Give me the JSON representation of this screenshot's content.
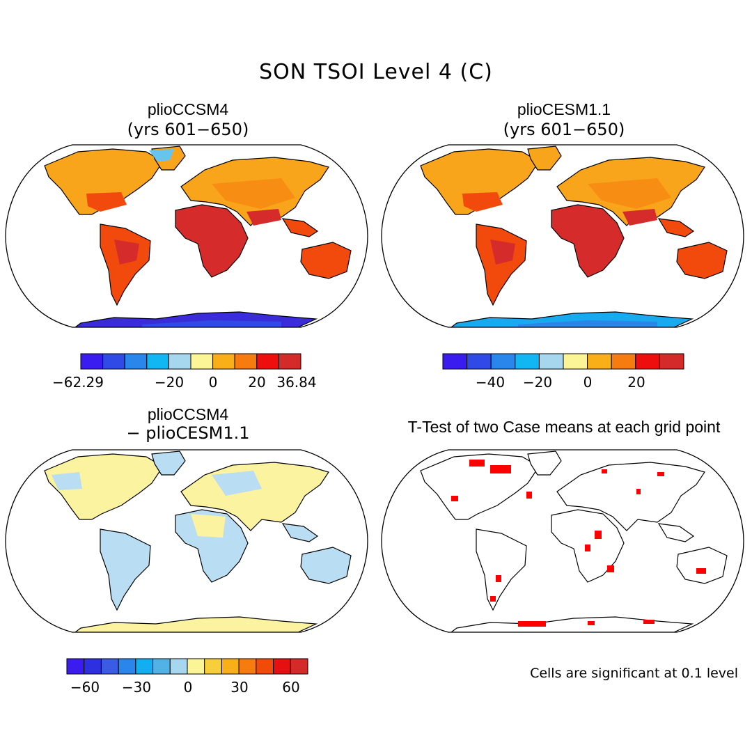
{
  "figure": {
    "title": "SON TSOI Level 4 (C)",
    "colors": {
      "scale": [
        "#3a1cf0",
        "#2f4ae6",
        "#2a86ea",
        "#11b7f2",
        "#a6d7ee",
        "#fbf598",
        "#f9b018",
        "#f77c10",
        "#ee0e0e",
        "#d42a2a"
      ],
      "diff_scale": [
        "#3a1cf0",
        "#2d2fe0",
        "#3c5be4",
        "#2a86ea",
        "#11aef0",
        "#52b2e6",
        "#a6d7ee",
        "#fbf598",
        "#f7cf3a",
        "#f9b018",
        "#f77c10",
        "#f24a08",
        "#e5100f",
        "#d42a2a"
      ],
      "land_warm": "#f24a0c",
      "land_hot": "#d52b2b",
      "land_mid": "#f8a51b",
      "land_cold": "#19a9ef",
      "land_coldest": "#3a2cd8",
      "diff_pos": "#fbf3a0",
      "diff_neg": "#b9ddf2",
      "signif": "#ff0000"
    }
  },
  "chart_data": [
    {
      "type": "map",
      "panel": "top-left",
      "title": "plioCCSM4",
      "subtitle": "(yrs 601−650)",
      "colorbar": {
        "tick_labels": [
          "−62.29",
          "−20",
          "0",
          "20",
          "36.84"
        ],
        "range": [
          -62.29,
          36.84
        ]
      }
    },
    {
      "type": "map",
      "panel": "top-right",
      "title": "plioCESM1.1",
      "subtitle": "(yrs 601−650)",
      "colorbar": {
        "tick_labels": [
          "−40",
          "−20",
          "0",
          "20"
        ],
        "range": [
          -62.29,
          36.84
        ]
      }
    },
    {
      "type": "map",
      "panel": "bottom-left",
      "title": "plioCCSM4",
      "subtitle": "− plioCESM1.1",
      "colorbar": {
        "tick_labels": [
          "−60",
          "−30",
          "0",
          "30",
          "60"
        ],
        "range": [
          -70,
          70
        ]
      }
    },
    {
      "type": "map",
      "panel": "bottom-right",
      "title": "T-Test of two Case means at each grid point",
      "note": "Cells are significant at 0.1 level"
    }
  ]
}
